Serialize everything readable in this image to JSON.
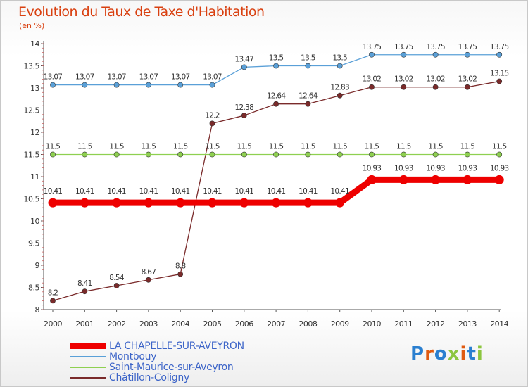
{
  "title": "Evolution du Taux de Taxe d'Habitation",
  "subtitle": "(en %)",
  "logo": "Proxiti",
  "chart_data": {
    "type": "line",
    "x": [
      "2000",
      "2001",
      "2002",
      "2003",
      "2004",
      "2005",
      "2006",
      "2007",
      "2008",
      "2009",
      "2010",
      "2011",
      "2012",
      "2013",
      "2014"
    ],
    "ylim": [
      8,
      14
    ],
    "yticks": [
      "8",
      "8.5",
      "9",
      "9.5",
      "10",
      "10.5",
      "11",
      "11.5",
      "12",
      "12.5",
      "13",
      "13.5",
      "14"
    ],
    "grid": false,
    "series": [
      {
        "name": "LA CHAPELLE-SUR-AVEYRON",
        "color": "#ee0000",
        "labels": [
          "10.41",
          "10.41",
          "10.41",
          "10.41",
          "10.41",
          "10.41",
          "10.41",
          "10.41",
          "10.41",
          "10.41",
          "10.93",
          "10.93",
          "10.93",
          "10.93",
          "10.93"
        ],
        "values": [
          10.41,
          10.41,
          10.41,
          10.41,
          10.41,
          10.41,
          10.41,
          10.41,
          10.41,
          10.41,
          10.93,
          10.93,
          10.93,
          10.93,
          10.93
        ]
      },
      {
        "name": "Montbouy",
        "color": "#5aa0d8",
        "labels": [
          "13.07",
          "13.07",
          "13.07",
          "13.07",
          "13.07",
          "13.07",
          "13.47",
          "13.5",
          "13.5",
          "13.5",
          "13.75",
          "13.75",
          "13.75",
          "13.75",
          "13.75"
        ],
        "values": [
          13.07,
          13.07,
          13.07,
          13.07,
          13.07,
          13.07,
          13.47,
          13.5,
          13.5,
          13.5,
          13.75,
          13.75,
          13.75,
          13.75,
          13.75
        ]
      },
      {
        "name": "Saint-Maurice-sur-Aveyron",
        "color": "#8ed050",
        "labels": [
          "11.5",
          "11.5",
          "11.5",
          "11.5",
          "11.5",
          "11.5",
          "11.5",
          "11.5",
          "11.5",
          "11.5",
          "11.5",
          "11.5",
          "11.5",
          "11.5",
          "11.5"
        ],
        "values": [
          11.5,
          11.5,
          11.5,
          11.5,
          11.5,
          11.5,
          11.5,
          11.5,
          11.5,
          11.5,
          11.5,
          11.5,
          11.5,
          11.5,
          11.5
        ]
      },
      {
        "name": "Châtillon-Coligny",
        "color": "#7a2a2a",
        "labels": [
          "8.2",
          "8.41",
          "8.54",
          "8.67",
          "8.8",
          "12.2",
          "12.38",
          "12.64",
          "12.64",
          "12.83",
          "13.02",
          "13.02",
          "13.02",
          "13.02",
          "13.15"
        ],
        "values": [
          8.2,
          8.41,
          8.54,
          8.67,
          8.8,
          12.2,
          12.38,
          12.64,
          12.64,
          12.83,
          13.02,
          13.02,
          13.02,
          13.02,
          13.15
        ]
      }
    ]
  }
}
